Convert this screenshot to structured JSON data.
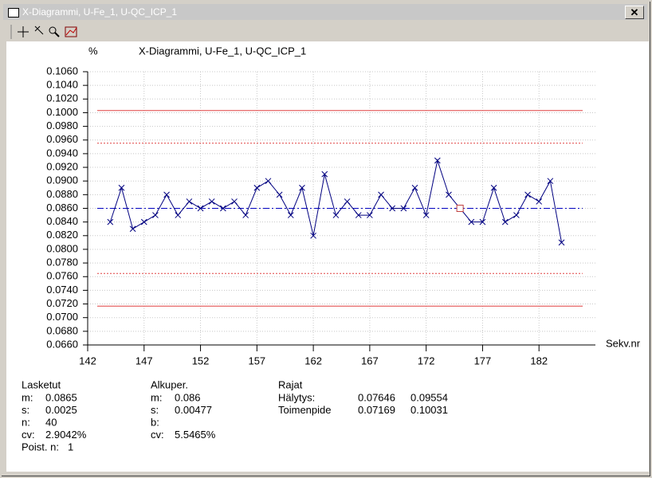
{
  "window": {
    "title": "X-Diagrammi, U-Fe_1, U-QC_ICP_1"
  },
  "chart_data": {
    "type": "line",
    "title": "X-Diagrammi, U-Fe_1, U-QC_ICP_1",
    "y_unit": "%",
    "x_label": "Sekv.nr",
    "x": [
      144,
      145,
      146,
      147,
      148,
      149,
      150,
      151,
      152,
      153,
      154,
      155,
      156,
      157,
      158,
      159,
      160,
      161,
      162,
      163,
      164,
      165,
      166,
      167,
      168,
      169,
      170,
      171,
      172,
      173,
      174,
      175,
      176,
      177,
      178,
      179,
      180,
      181,
      182,
      183,
      184
    ],
    "values": [
      0.084,
      0.089,
      0.083,
      0.084,
      0.085,
      0.088,
      0.085,
      0.087,
      0.086,
      0.087,
      0.086,
      0.087,
      0.085,
      0.089,
      0.09,
      0.088,
      0.085,
      0.089,
      0.082,
      0.091,
      0.085,
      0.087,
      0.085,
      0.085,
      0.088,
      0.086,
      0.086,
      0.089,
      0.085,
      0.093,
      0.088,
      0.086,
      0.084,
      0.084,
      0.089,
      0.084,
      0.085,
      0.088,
      0.087,
      0.09,
      0.081
    ],
    "excluded_x": [
      175
    ],
    "color": "#000080",
    "excluded_color": "#c04040",
    "reference_lines": [
      {
        "value": 0.086,
        "style": "dashdot",
        "color": "#0000c0"
      },
      {
        "value": 0.07646,
        "style": "dotted",
        "color": "#e04040"
      },
      {
        "value": 0.09554,
        "style": "dotted",
        "color": "#e04040"
      },
      {
        "value": 0.07169,
        "style": "solid",
        "color": "#e04040"
      },
      {
        "value": 0.10031,
        "style": "solid",
        "color": "#e04040"
      }
    ],
    "xlim": [
      142,
      187
    ],
    "xticks": [
      142,
      147,
      152,
      157,
      162,
      167,
      172,
      177,
      182
    ],
    "ylim": [
      0.066,
      0.106
    ],
    "yticks": [
      {
        "value": 0.066,
        "label": "0.0660"
      },
      {
        "value": 0.068,
        "label": "0.0680"
      },
      {
        "value": 0.07,
        "label": "0.0700"
      },
      {
        "value": 0.072,
        "label": "0.0720"
      },
      {
        "value": 0.074,
        "label": "0.0740"
      },
      {
        "value": 0.076,
        "label": "0.0760"
      },
      {
        "value": 0.078,
        "label": "0.0780"
      },
      {
        "value": 0.08,
        "label": "0.0800"
      },
      {
        "value": 0.082,
        "label": "0.0820"
      },
      {
        "value": 0.084,
        "label": "0.0840"
      },
      {
        "value": 0.086,
        "label": "0.0860"
      },
      {
        "value": 0.088,
        "label": "0.0880"
      },
      {
        "value": 0.09,
        "label": "0.0900"
      },
      {
        "value": 0.092,
        "label": "0.0920"
      },
      {
        "value": 0.094,
        "label": "0.0940"
      },
      {
        "value": 0.096,
        "label": "0.0960"
      },
      {
        "value": 0.098,
        "label": "0.0980"
      },
      {
        "value": 0.1,
        "label": "0.1000"
      },
      {
        "value": 0.102,
        "label": "0.1020"
      },
      {
        "value": 0.104,
        "label": "0.1040"
      },
      {
        "value": 0.106,
        "label": "0.1060"
      }
    ],
    "grid": true
  },
  "stats": [
    {
      "title": "Lasketut",
      "rows": [
        [
          "m:",
          "0.0865"
        ],
        [
          "s:",
          "0.0025"
        ],
        [
          "n:",
          "40"
        ],
        [
          "cv:",
          "2.9042%"
        ],
        [
          "Poist. n:",
          "1"
        ]
      ]
    },
    {
      "title": "Alkuper.",
      "rows": [
        [
          "m:",
          "0.086"
        ],
        [
          "s:",
          "0.00477"
        ],
        [
          "b:"
        ],
        [
          "cv:",
          "5.5465%"
        ]
      ]
    },
    {
      "title": "Rajat",
      "rows": [
        [
          "Hälytys:",
          "0.07646",
          "0.09554"
        ],
        [
          "Toimenpide",
          "0.07169",
          "0.10031"
        ]
      ]
    }
  ]
}
